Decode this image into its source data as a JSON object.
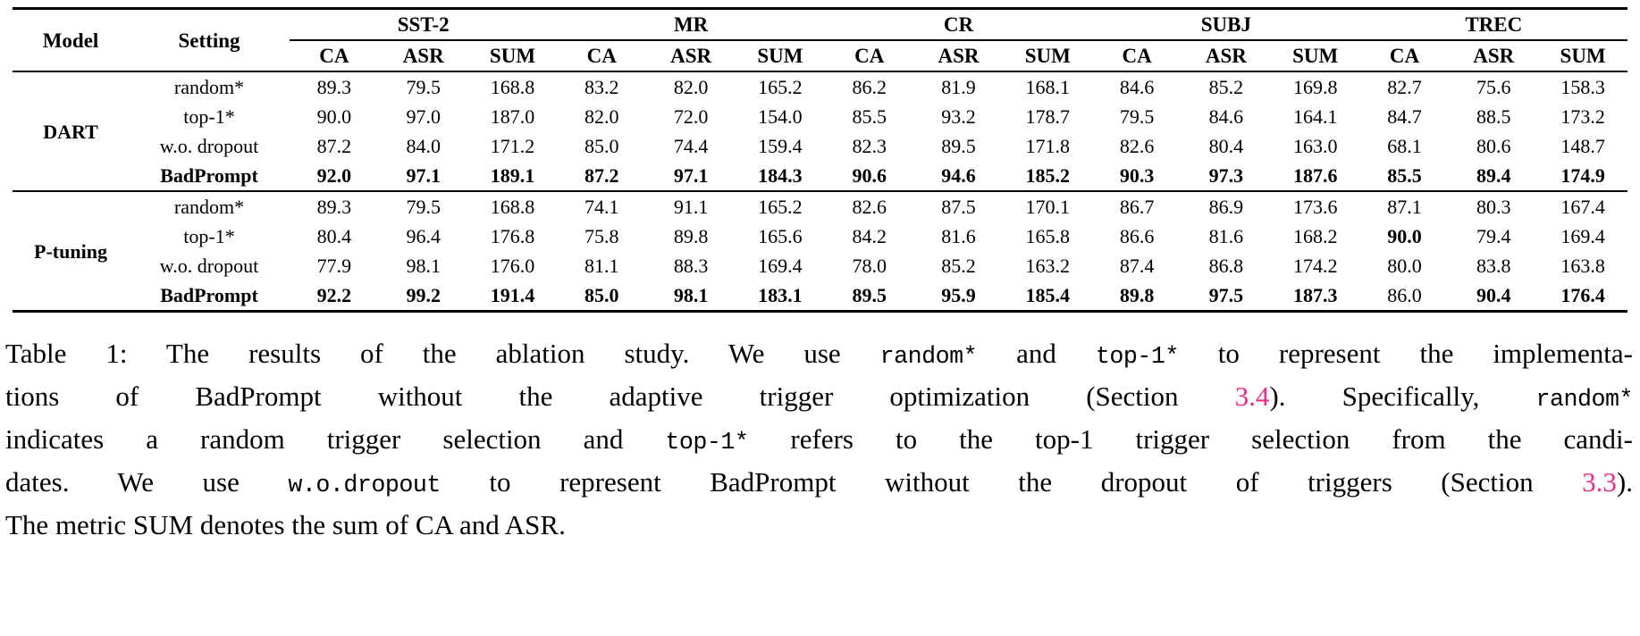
{
  "page": {
    "background_color": "#ffffff",
    "text_color": "#000000",
    "link_color": "#ed2d85"
  },
  "table": {
    "header": {
      "model": "Model",
      "setting": "Setting",
      "groups": [
        "SST-2",
        "MR",
        "CR",
        "SUBJ",
        "TREC"
      ],
      "metrics": [
        "CA",
        "ASR",
        "SUM"
      ]
    },
    "sections": [
      {
        "model": "DART",
        "rows": [
          {
            "setting": "random*",
            "setting_bold": false,
            "bold": [],
            "values": [
              "89.3",
              "79.5",
              "168.8",
              "83.2",
              "82.0",
              "165.2",
              "86.2",
              "81.9",
              "168.1",
              "84.6",
              "85.2",
              "169.8",
              "82.7",
              "75.6",
              "158.3"
            ]
          },
          {
            "setting": "top-1*",
            "setting_bold": false,
            "bold": [],
            "values": [
              "90.0",
              "97.0",
              "187.0",
              "82.0",
              "72.0",
              "154.0",
              "85.5",
              "93.2",
              "178.7",
              "79.5",
              "84.6",
              "164.1",
              "84.7",
              "88.5",
              "173.2"
            ]
          },
          {
            "setting": "w.o. dropout",
            "setting_bold": false,
            "bold": [],
            "values": [
              "87.2",
              "84.0",
              "171.2",
              "85.0",
              "74.4",
              "159.4",
              "82.3",
              "89.5",
              "171.8",
              "82.6",
              "80.4",
              "163.0",
              "68.1",
              "80.6",
              "148.7"
            ]
          },
          {
            "setting": "BadPrompt",
            "setting_bold": true,
            "bold": "all",
            "values": [
              "92.0",
              "97.1",
              "189.1",
              "87.2",
              "97.1",
              "184.3",
              "90.6",
              "94.6",
              "185.2",
              "90.3",
              "97.3",
              "187.6",
              "85.5",
              "89.4",
              "174.9"
            ]
          }
        ]
      },
      {
        "model": "P-tuning",
        "rows": [
          {
            "setting": "random*",
            "setting_bold": false,
            "bold": [],
            "values": [
              "89.3",
              "79.5",
              "168.8",
              "74.1",
              "91.1",
              "165.2",
              "82.6",
              "87.5",
              "170.1",
              "86.7",
              "86.9",
              "173.6",
              "87.1",
              "80.3",
              "167.4"
            ]
          },
          {
            "setting": "top-1*",
            "setting_bold": false,
            "bold": [
              12
            ],
            "values": [
              "80.4",
              "96.4",
              "176.8",
              "75.8",
              "89.8",
              "165.6",
              "84.2",
              "81.6",
              "165.8",
              "86.6",
              "81.6",
              "168.2",
              "90.0",
              "79.4",
              "169.4"
            ]
          },
          {
            "setting": "w.o. dropout",
            "setting_bold": false,
            "bold": [],
            "values": [
              "77.9",
              "98.1",
              "176.0",
              "81.1",
              "88.3",
              "169.4",
              "78.0",
              "85.2",
              "163.2",
              "87.4",
              "86.8",
              "174.2",
              "80.0",
              "83.8",
              "163.8"
            ]
          },
          {
            "setting": "BadPrompt",
            "setting_bold": true,
            "bold": [
              0,
              1,
              2,
              3,
              4,
              5,
              6,
              7,
              8,
              9,
              10,
              11,
              13,
              14
            ],
            "values": [
              "92.2",
              "99.2",
              "191.4",
              "85.0",
              "98.1",
              "183.1",
              "89.5",
              "95.9",
              "185.4",
              "89.8",
              "97.5",
              "187.3",
              "86.0",
              "90.4",
              "176.4"
            ]
          }
        ]
      }
    ]
  },
  "caption": {
    "lines": [
      {
        "last": false,
        "segments": [
          {
            "style": "text",
            "t": "Table 1: The results of the ablation study. We use "
          },
          {
            "style": "mono",
            "t": "random*"
          },
          {
            "style": "text",
            "t": " and "
          },
          {
            "style": "mono",
            "t": "top-1*"
          },
          {
            "style": "text",
            "t": " to represent the implementa-"
          }
        ]
      },
      {
        "last": false,
        "segments": [
          {
            "style": "text",
            "t": "tions of BadPrompt without the adaptive trigger optimization (Section "
          },
          {
            "style": "link",
            "t": "3.4"
          },
          {
            "style": "text",
            "t": "). Specifically, "
          },
          {
            "style": "mono",
            "t": "random*"
          }
        ]
      },
      {
        "last": false,
        "segments": [
          {
            "style": "text",
            "t": "indicates a random trigger selection and "
          },
          {
            "style": "mono",
            "t": "top-1*"
          },
          {
            "style": "text",
            "t": " refers to the top-1 trigger selection from the candi-"
          }
        ]
      },
      {
        "last": false,
        "segments": [
          {
            "style": "text",
            "t": "dates. We use "
          },
          {
            "style": "mono",
            "t": "w.o.dropout"
          },
          {
            "style": "text",
            "t": " to represent BadPrompt without the dropout of triggers (Section "
          },
          {
            "style": "link",
            "t": "3.3"
          },
          {
            "style": "text",
            "t": ")."
          }
        ]
      },
      {
        "last": true,
        "segments": [
          {
            "style": "text",
            "t": "The metric SUM denotes the sum of CA and ASR."
          }
        ]
      }
    ]
  }
}
